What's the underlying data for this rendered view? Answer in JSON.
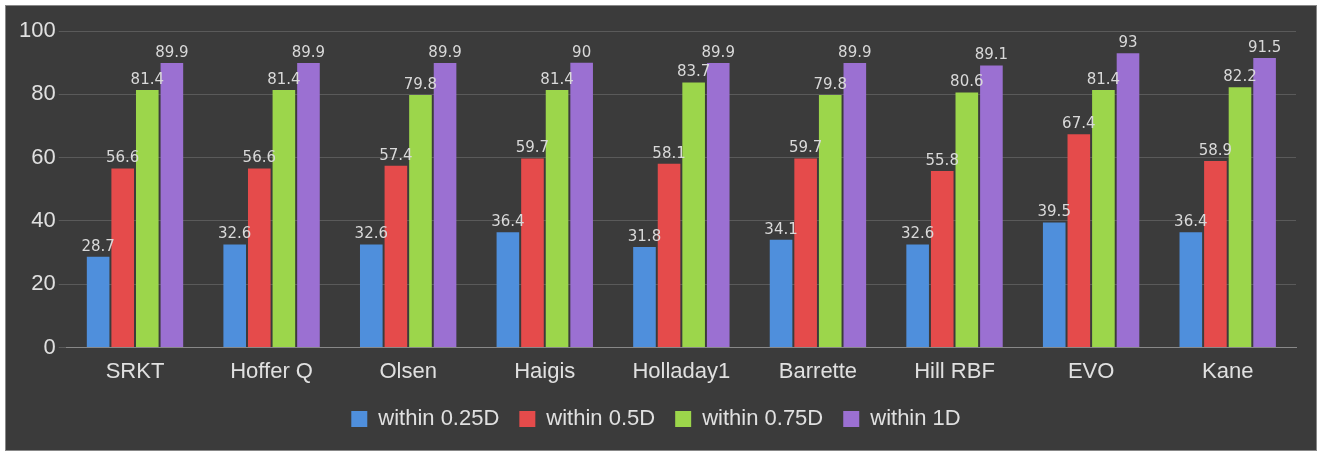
{
  "chart_data": {
    "type": "bar",
    "categories": [
      "SRKT",
      "Hoffer Q",
      "Olsen",
      "Haigis",
      "Holladay1",
      "Barrette",
      "Hill RBF",
      "EVO",
      "Kane"
    ],
    "series": [
      {
        "name": "within 0.25D",
        "color": "#4f8fdc",
        "values": [
          28.7,
          32.6,
          32.6,
          36.4,
          31.8,
          34.1,
          32.6,
          39.5,
          36.4
        ]
      },
      {
        "name": "within 0.5D",
        "color": "#e54b4b",
        "values": [
          56.6,
          56.6,
          57.4,
          59.7,
          58.1,
          59.7,
          55.8,
          67.4,
          58.9
        ]
      },
      {
        "name": "within 0.75D",
        "color": "#9cd64b",
        "values": [
          81.4,
          81.4,
          79.8,
          81.4,
          83.7,
          79.8,
          80.6,
          81.4,
          82.2
        ]
      },
      {
        "name": "within 1D",
        "color": "#9b70d2",
        "values": [
          89.9,
          89.9,
          89.9,
          90,
          89.9,
          89.9,
          89.1,
          93,
          91.5
        ]
      }
    ],
    "ylim": [
      0,
      100
    ],
    "yticks": [
      0,
      20,
      40,
      60,
      80,
      100
    ],
    "grid": "y",
    "legend": "bottom",
    "data_labels": true
  }
}
